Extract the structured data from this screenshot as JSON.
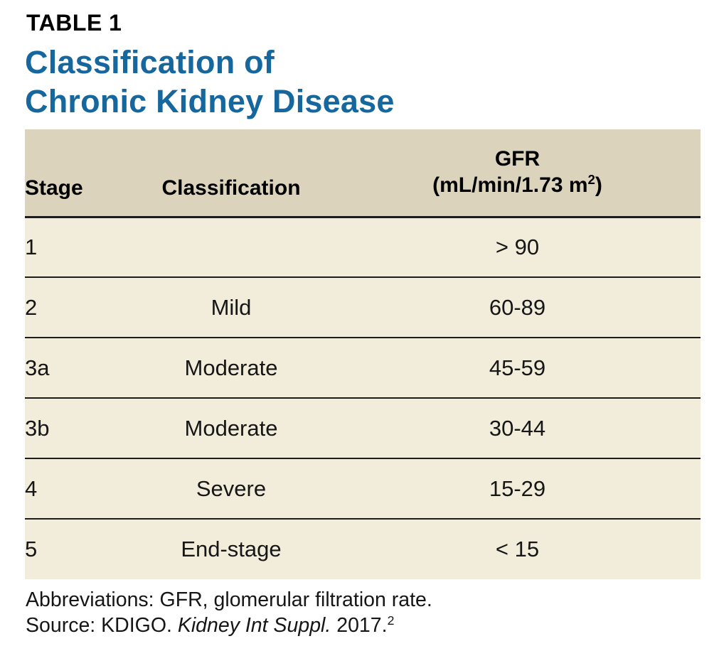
{
  "page": {
    "eyebrow": "TABLE 1",
    "title_line1": "Classification of",
    "title_line2": "Chronic Kidney Disease"
  },
  "colors": {
    "title_blue": "#15679E",
    "header_background": "#DBD3BB",
    "row_background": "#F2ECDA",
    "rule": "#1c1c1c"
  },
  "table": {
    "headers": {
      "stage": "Stage",
      "classification": "Classification",
      "gfr_line1": "GFR",
      "gfr_line2_pre": "(mL/min/1.73 m",
      "gfr_line2_sup": "2",
      "gfr_line2_post": ")"
    },
    "rows": [
      {
        "stage": "1",
        "classification": "",
        "gfr": "> 90"
      },
      {
        "stage": "2",
        "classification": "Mild",
        "gfr": "60-89"
      },
      {
        "stage": "3a",
        "classification": "Moderate",
        "gfr": "45-59"
      },
      {
        "stage": "3b",
        "classification": "Moderate",
        "gfr": "30-44"
      },
      {
        "stage": "4",
        "classification": "Severe",
        "gfr": "15-29"
      },
      {
        "stage": "5",
        "classification": "End-stage",
        "gfr": "< 15"
      }
    ]
  },
  "footnotes": {
    "abbreviations": "Abbreviations: GFR, glomerular filtration rate.",
    "source_prefix": "Source: KDIGO. ",
    "source_italic": "Kidney Int Suppl.",
    "source_suffix": " 2017.",
    "source_superscript": "2"
  }
}
